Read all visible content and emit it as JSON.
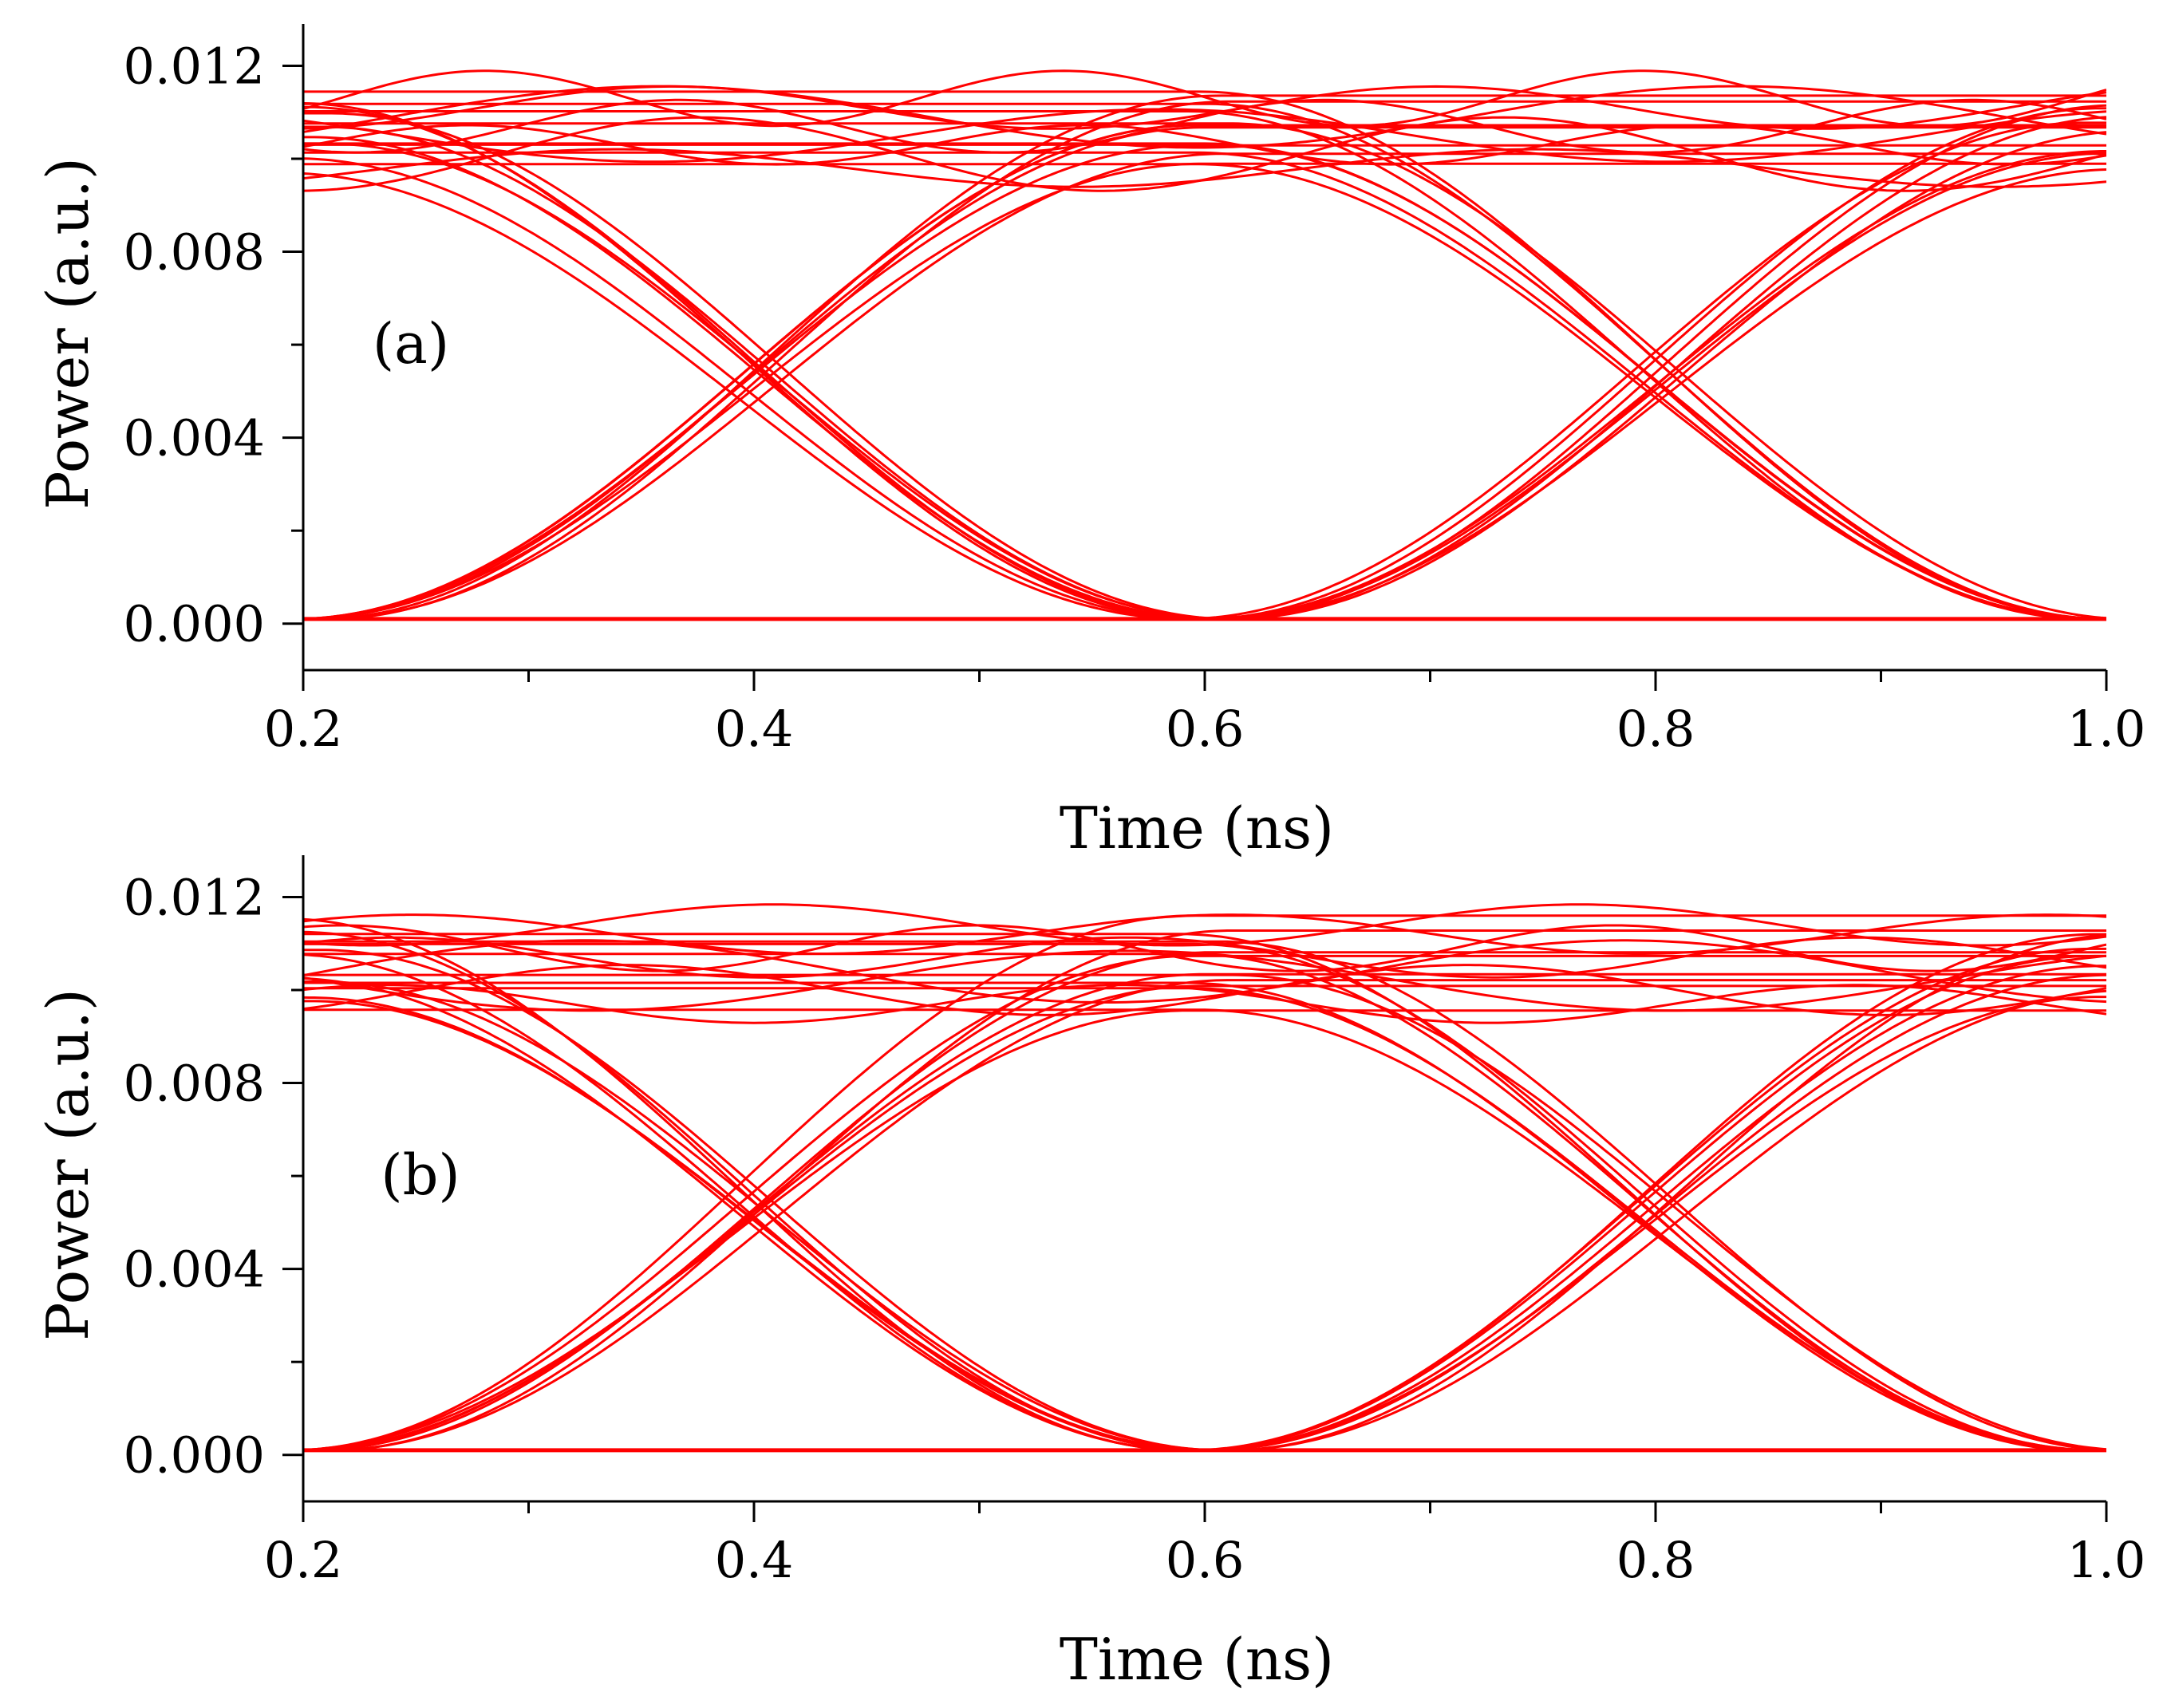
{
  "figure": {
    "trace_color": "#ff0000",
    "axis_color": "#000000",
    "background": "#ffffff"
  },
  "chart_data": [
    {
      "type": "line",
      "subtype": "eye-diagram",
      "panel_label": "(a)",
      "xlabel": "Time (ns)",
      "ylabel": "Power (a.u.)",
      "xlim": [
        0.2,
        1.0
      ],
      "ylim": [
        -0.001,
        0.0129
      ],
      "xticks": [
        0.2,
        0.4,
        0.6,
        0.8,
        1.0
      ],
      "xtick_labels": [
        "0.2",
        "0.4",
        "0.6",
        "0.8",
        "1.0"
      ],
      "yticks": [
        0.0,
        0.004,
        0.008,
        0.012
      ],
      "ytick_labels": [
        "0.000",
        "0.004",
        "0.008",
        "0.012"
      ],
      "x_minor_step": 0.1,
      "y_minor_step": 0.002,
      "grid": false,
      "unit_interval_ns": 0.4,
      "crossing_times_ns": [
        0.4,
        0.8
      ],
      "crossing_level": 0.0053,
      "one_level_range": [
        0.0097,
        0.0114
      ],
      "zero_level": 0.0001,
      "series": [
        {
          "name": "high-level traces",
          "values": [
            0.0098,
            0.0101,
            0.0103,
            0.0105,
            0.0107,
            0.0109,
            0.0111,
            0.0113
          ]
        },
        {
          "name": "falling edges",
          "t0_ns": [
            0.4,
            0.8
          ],
          "count": 8
        },
        {
          "name": "rising edges",
          "t0_ns": [
            0.4,
            0.8
          ],
          "count": 8
        },
        {
          "name": "low-level trace",
          "values": [
            0.0001
          ]
        }
      ]
    },
    {
      "type": "line",
      "subtype": "eye-diagram",
      "panel_label": "(b)",
      "xlabel": "Time (ns)",
      "ylabel": "Power (a.u.)",
      "xlim": [
        0.2,
        1.0
      ],
      "ylim": [
        -0.001,
        0.0129
      ],
      "xticks": [
        0.2,
        0.4,
        0.6,
        0.8,
        1.0
      ],
      "xtick_labels": [
        "0.2",
        "0.4",
        "0.6",
        "0.8",
        "1.0"
      ],
      "yticks": [
        0.0,
        0.004,
        0.008,
        0.012
      ],
      "ytick_labels": [
        "0.000",
        "0.004",
        "0.008",
        "0.012"
      ],
      "x_minor_step": 0.1,
      "y_minor_step": 0.002,
      "grid": false,
      "unit_interval_ns": 0.4,
      "crossing_times_ns": [
        0.4,
        0.8
      ],
      "crossing_level": 0.0053,
      "one_level_range": [
        0.0096,
        0.0115
      ],
      "zero_level": 0.0001,
      "series": [
        {
          "name": "high-level traces",
          "values": [
            0.0097,
            0.01,
            0.0102,
            0.0104,
            0.0107,
            0.0109,
            0.0112,
            0.0114
          ]
        },
        {
          "name": "falling edges",
          "t0_ns": [
            0.4,
            0.8
          ],
          "count": 8
        },
        {
          "name": "rising edges",
          "t0_ns": [
            0.4,
            0.8
          ],
          "count": 8
        },
        {
          "name": "low-level trace",
          "values": [
            0.0001
          ]
        }
      ]
    }
  ]
}
